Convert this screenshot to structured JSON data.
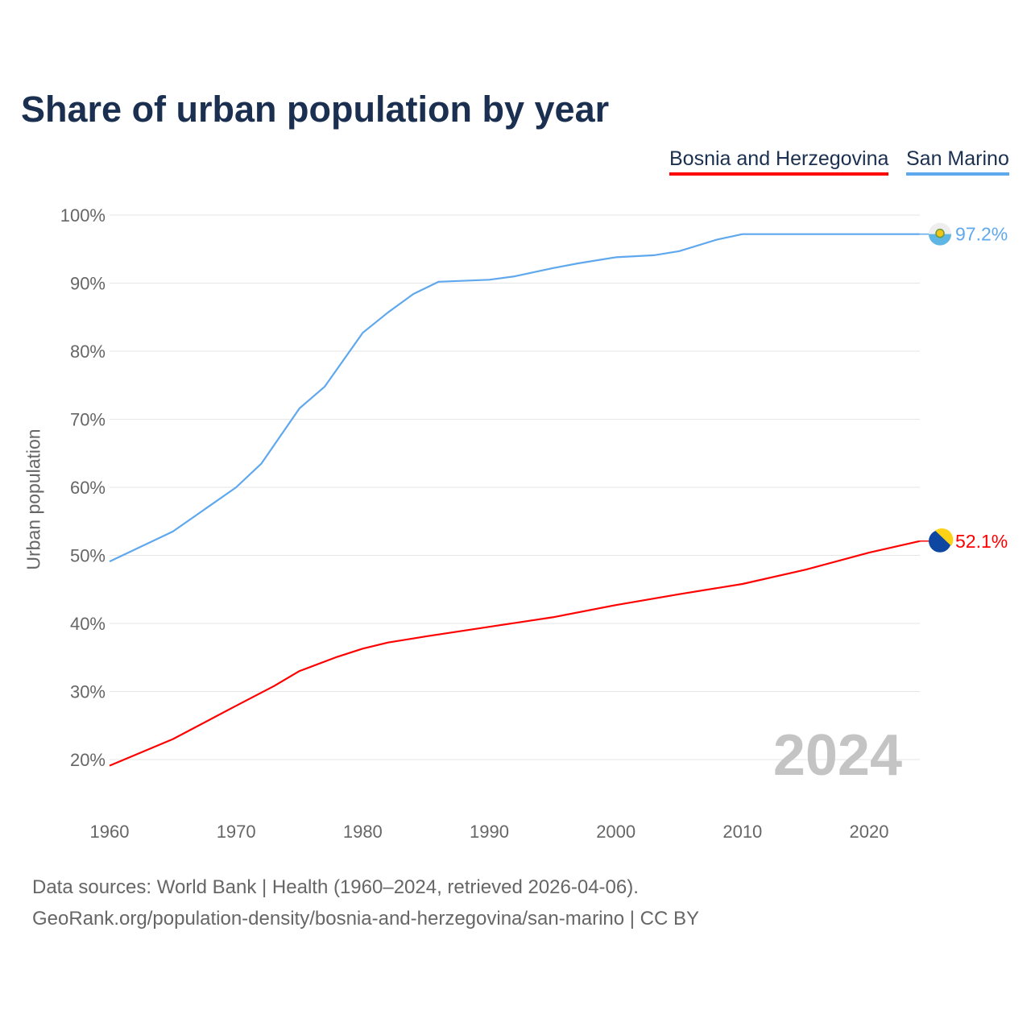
{
  "chart_data": {
    "type": "line",
    "title": "Share of urban population by year",
    "ylabel": "Urban population",
    "xlabel": "",
    "ylim": [
      20,
      100
    ],
    "xlim": [
      1960,
      2024
    ],
    "yticks": [
      "20%",
      "30%",
      "40%",
      "50%",
      "60%",
      "70%",
      "80%",
      "90%",
      "100%"
    ],
    "xticks": [
      "1960",
      "1970",
      "1980",
      "1990",
      "2000",
      "2010",
      "2020"
    ],
    "year_label": "2024",
    "series": [
      {
        "name": "Bosnia and Herzegovina",
        "color": "#ff0000",
        "end_label": "52.1%",
        "x": [
          1960,
          1965,
          1970,
          1973,
          1975,
          1978,
          1980,
          1982,
          1985,
          1990,
          1995,
          2000,
          2005,
          2010,
          2015,
          2020,
          2024
        ],
        "values": [
          19.1,
          23.0,
          27.9,
          30.8,
          33.0,
          35.1,
          36.3,
          37.2,
          38.1,
          39.5,
          40.9,
          42.7,
          44.3,
          45.8,
          47.9,
          50.4,
          52.1
        ]
      },
      {
        "name": "San Marino",
        "color": "#5fa8ee",
        "end_label": "97.2%",
        "x": [
          1960,
          1965,
          1970,
          1972,
          1975,
          1977,
          1980,
          1982,
          1984,
          1986,
          1990,
          1992,
          1995,
          1997,
          2000,
          2003,
          2005,
          2008,
          2010,
          2024
        ],
        "values": [
          49.1,
          53.5,
          60.0,
          63.5,
          71.6,
          74.8,
          82.7,
          85.7,
          88.4,
          90.2,
          90.5,
          91.0,
          92.2,
          92.9,
          93.8,
          94.1,
          94.7,
          96.4,
          97.2,
          97.2
        ]
      }
    ]
  },
  "footer": {
    "line1": "Data sources: World Bank | Health (1960–2024, retrieved 2026-04-06).",
    "line2": "GeoRank.org/population-density/bosnia-and-herzegovina/san-marino | CC BY"
  }
}
